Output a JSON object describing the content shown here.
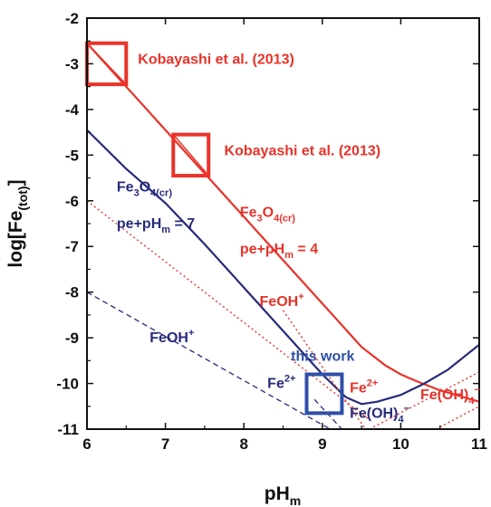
{
  "chart_data": {
    "type": "line",
    "xlabel": "pH",
    "xlabel_sub": "m",
    "ylabel": "log[Fe",
    "ylabel_sub": "(tot)",
    "ylabel_end": "]",
    "xlim": [
      6,
      11
    ],
    "ylim": [
      -11,
      -2
    ],
    "x_ticks": [
      "6",
      "7",
      "8",
      "9",
      "10",
      "11"
    ],
    "y_ticks": [
      "-2",
      "-3",
      "-4",
      "-5",
      "-6",
      "-7",
      "-8",
      "-9",
      "-10",
      "-11"
    ],
    "colors": {
      "red": "#e8332a",
      "blue": "#262a7a",
      "box_blue": "#2f4fa8",
      "axis": "#111111"
    },
    "series": [
      {
        "style": "solid",
        "color": "red",
        "x": [
          6.0,
          6.5,
          7.0,
          7.5,
          8.0,
          8.5,
          9.0,
          9.5,
          9.8,
          10.0,
          10.2,
          10.5,
          11.0
        ],
        "y": [
          -2.55,
          -3.5,
          -4.45,
          -5.4,
          -6.35,
          -7.3,
          -8.25,
          -9.2,
          -9.6,
          -9.8,
          -9.95,
          -10.15,
          -10.4
        ]
      },
      {
        "style": "solid",
        "color": "blue",
        "x": [
          6.0,
          6.5,
          7.0,
          7.5,
          8.0,
          8.5,
          9.0,
          9.3,
          9.5,
          9.7,
          10.0,
          10.3,
          10.6,
          11.0
        ],
        "y": [
          -4.45,
          -5.3,
          -6.05,
          -6.95,
          -7.9,
          -8.85,
          -9.8,
          -10.3,
          -10.45,
          -10.4,
          -10.25,
          -10.0,
          -9.7,
          -9.15
        ]
      },
      {
        "style": "dotted",
        "color": "red",
        "x": [
          6.0,
          9.6
        ],
        "y": [
          -6.0,
          -10.8
        ]
      },
      {
        "style": "dotted",
        "color": "red",
        "x": [
          8.5,
          9.55
        ],
        "y": [
          -8.4,
          -11.0
        ]
      },
      {
        "style": "dotted",
        "color": "red",
        "x": [
          9.6,
          11.0
        ],
        "y": [
          -11.0,
          -9.75
        ]
      },
      {
        "style": "dotted",
        "color": "red",
        "x": [
          10.45,
          11.0
        ],
        "y": [
          -11.0,
          -10.5
        ]
      },
      {
        "style": "dashed",
        "color": "blue",
        "x": [
          6.0,
          9.1
        ],
        "y": [
          -8.0,
          -11.0
        ]
      },
      {
        "style": "dashed",
        "color": "blue",
        "x": [
          8.9,
          9.25
        ],
        "y": [
          -10.35,
          -11.0
        ]
      }
    ],
    "boxes": [
      {
        "color": "red",
        "x": [
          6.0,
          6.5
        ],
        "y": [
          -2.55,
          -3.45
        ],
        "diagonal": true
      },
      {
        "color": "red",
        "x": [
          7.1,
          7.55
        ],
        "y": [
          -4.55,
          -5.45
        ],
        "diagonal": true
      },
      {
        "color": "box_blue",
        "x": [
          8.8,
          9.25
        ],
        "y": [
          -9.8,
          -10.65
        ],
        "diagonal": false
      }
    ],
    "annotations": [
      {
        "id": "kob1",
        "color": "red",
        "x": 6.65,
        "y": -3.0,
        "parts": [
          [
            "Kobayashi et al. (2013)",
            ""
          ]
        ]
      },
      {
        "id": "kob2",
        "color": "red",
        "x": 7.75,
        "y": -5.0,
        "parts": [
          [
            "Kobayashi et al. (2013)",
            ""
          ]
        ]
      },
      {
        "id": "fe3o4-blue",
        "color": "blue",
        "x": 6.38,
        "y": -5.8,
        "parts": [
          [
            "Fe",
            ""
          ],
          [
            "3",
            "sub"
          ],
          [
            "O",
            ""
          ],
          [
            "4(cr)",
            "sub"
          ]
        ]
      },
      {
        "id": "pe-blue",
        "color": "blue",
        "x": 6.38,
        "y": -6.6,
        "parts": [
          [
            "pe+pH",
            ""
          ],
          [
            "m",
            "sub"
          ],
          [
            " = 7",
            ""
          ]
        ]
      },
      {
        "id": "fe3o4-red",
        "color": "red",
        "x": 7.95,
        "y": -6.35,
        "parts": [
          [
            "Fe",
            ""
          ],
          [
            "3",
            "sub"
          ],
          [
            "O",
            ""
          ],
          [
            "4(cr)",
            "sub"
          ]
        ]
      },
      {
        "id": "pe-red",
        "color": "red",
        "x": 7.95,
        "y": -7.15,
        "parts": [
          [
            "pe+pH",
            ""
          ],
          [
            "m",
            "sub"
          ],
          [
            " = 4",
            ""
          ]
        ]
      },
      {
        "id": "feoh-red",
        "color": "red",
        "x": 8.2,
        "y": -8.3,
        "parts": [
          [
            "FeOH",
            ""
          ],
          [
            "+",
            "sup"
          ]
        ]
      },
      {
        "id": "feoh-blue",
        "color": "blue",
        "x": 6.8,
        "y": -9.1,
        "parts": [
          [
            "FeOH",
            ""
          ],
          [
            "+",
            "sup"
          ]
        ]
      },
      {
        "id": "thiswork",
        "color": "box_blue",
        "x": 8.6,
        "y": -9.5,
        "parts": [
          [
            "this work",
            ""
          ]
        ]
      },
      {
        "id": "fe2-blue",
        "color": "blue",
        "x": 8.3,
        "y": -10.1,
        "parts": [
          [
            "Fe",
            ""
          ],
          [
            "2+",
            "sup"
          ]
        ]
      },
      {
        "id": "fe2-red",
        "color": "red",
        "x": 9.35,
        "y": -10.2,
        "parts": [
          [
            "Fe",
            ""
          ],
          [
            "2+",
            "sup"
          ]
        ]
      },
      {
        "id": "feoh4-blue",
        "color": "blue",
        "x": 9.35,
        "y": -10.75,
        "parts": [
          [
            "Fe(OH)",
            ""
          ],
          [
            "4",
            "sub"
          ],
          [
            "−",
            "sup"
          ]
        ]
      },
      {
        "id": "feoh4-red",
        "color": "red",
        "x": 10.25,
        "y": -10.35,
        "parts": [
          [
            "Fe(OH)",
            ""
          ],
          [
            "4",
            "sub"
          ],
          [
            "−",
            "sup"
          ]
        ]
      }
    ]
  }
}
